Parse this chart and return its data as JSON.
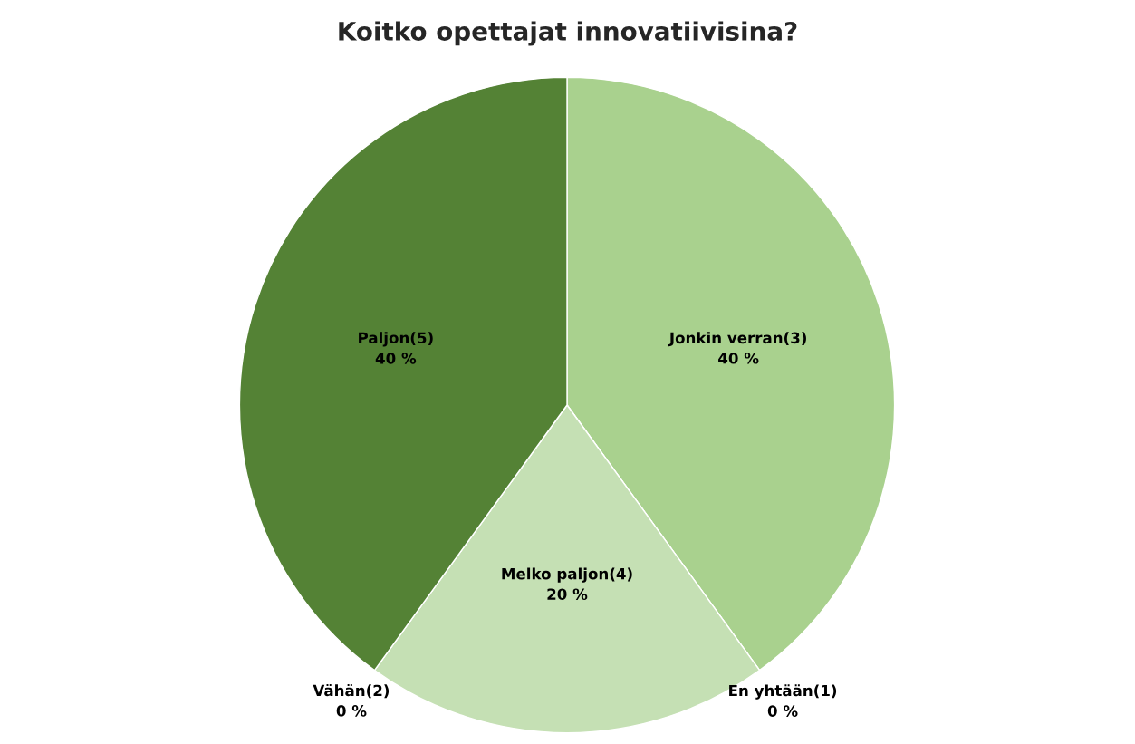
{
  "chart_data": {
    "type": "pie",
    "title": "Koitko opettajat innovatiivisina?",
    "categories": [
      "Jonkin verran(3)",
      "En yhtään(1)",
      "Melko paljon(4)",
      "Vähän(2)",
      "Paljon(5)"
    ],
    "values": [
      40,
      0,
      20,
      0,
      40
    ],
    "value_labels": [
      "40 %",
      "0 %",
      "20 %",
      "0 %",
      "40 %"
    ],
    "colors": [
      "#a9d18e",
      "#e2f0d9",
      "#c5e0b4",
      "#385723",
      "#548235"
    ]
  }
}
